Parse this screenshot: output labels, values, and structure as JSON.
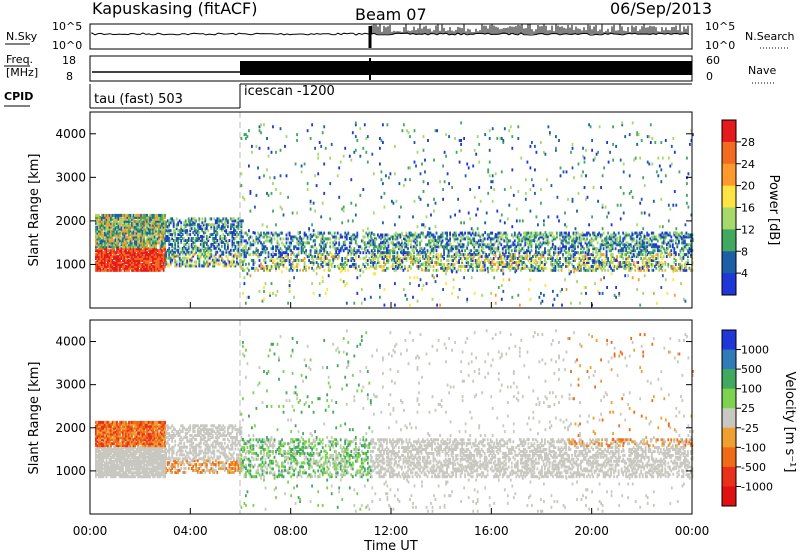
{
  "header": {
    "station": "Kapuskasing (fitACF)",
    "beam": "Beam 07",
    "date": "06/Sep/2013"
  },
  "top_panels": {
    "nsky_label": "N.Sky",
    "nsearch_label": "N.Search",
    "nsky_ticks": [
      "10^5",
      "10^0"
    ],
    "nsearch_ticks": [
      "10^5",
      "10^0"
    ],
    "freq_label_1": "Freq.",
    "freq_label_2": "[MHz]",
    "freq_ticks": [
      "18",
      "8"
    ],
    "nave_label": "Nave",
    "nave_ticks": [
      "60",
      "0"
    ],
    "cpid_label": "CPID",
    "cpid_segments": [
      "tau (fast) 503",
      "icescan -1200"
    ]
  },
  "chart_data": [
    {
      "type": "heatmap",
      "name": "power",
      "ylabel": "Slant Range [km]",
      "ylim": [
        0,
        4500
      ],
      "y_ticks": [
        1000,
        2000,
        3000,
        4000
      ],
      "colorbar_label": "Power [dB]",
      "colorbar_ticks": [
        "28",
        "24",
        "20",
        "16",
        "12",
        "8",
        "4"
      ],
      "colorbar_colors": [
        "#e41a1c",
        "#f36b21",
        "#fd9a2b",
        "#fee442",
        "#a6d96a",
        "#41a85f",
        "#1a5fa8",
        "#1f36d8"
      ]
    },
    {
      "type": "heatmap",
      "name": "velocity",
      "xlabel": "Time UT",
      "ylabel": "Slant Range [km]",
      "ylim": [
        0,
        4500
      ],
      "y_ticks": [
        1000,
        2000,
        3000,
        4000
      ],
      "x_ticks": [
        "00:00",
        "04:00",
        "08:00",
        "12:00",
        "16:00",
        "20:00",
        "00:00"
      ],
      "colorbar_label": "Velocity [m s⁻¹]",
      "colorbar_ticks": [
        "1000",
        "500",
        "100",
        "25",
        "-25",
        "-100",
        "-500",
        "-1000"
      ],
      "colorbar_colors": [
        "#1f36d8",
        "#2e7bb8",
        "#41a85f",
        "#7ed34e",
        "#c8c8c0",
        "#f0a030",
        "#f06b18",
        "#e8301a",
        "#e01010"
      ]
    }
  ]
}
